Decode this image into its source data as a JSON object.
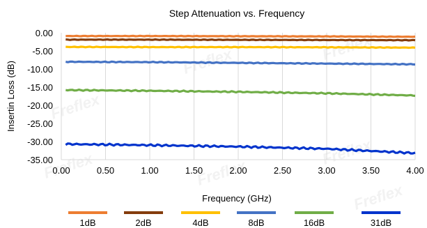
{
  "chart_data": {
    "type": "line",
    "title": "Step Attenuation vs. Frequency",
    "xlabel": "Frequency (GHz)",
    "ylabel": "Insertin Loss (dB)",
    "xlim": [
      0,
      4
    ],
    "ylim": [
      -35,
      0
    ],
    "x_ticks": [
      "0.00",
      "0.50",
      "1.00",
      "1.50",
      "2.00",
      "2.50",
      "3.00",
      "3.50",
      "4.00"
    ],
    "y_ticks": [
      "0.00",
      "-5.00",
      "-10.00",
      "-15.00",
      "-20.00",
      "-25.00",
      "-30.00",
      "-35.00"
    ],
    "grid": "vertical",
    "legend_position": "bottom",
    "watermark": "Freflex",
    "series": [
      {
        "name": "1dB",
        "color": "#ED7D31",
        "x": [
          0.05,
          1.0,
          2.0,
          3.0,
          4.0
        ],
        "y": [
          -0.9,
          -0.9,
          -0.95,
          -1.0,
          -1.1
        ]
      },
      {
        "name": "2dB",
        "color": "#843C0C",
        "x": [
          0.05,
          1.0,
          2.0,
          3.0,
          4.0
        ],
        "y": [
          -1.9,
          -1.9,
          -1.95,
          -2.0,
          -2.05
        ]
      },
      {
        "name": "4dB",
        "color": "#FFC000",
        "x": [
          0.05,
          1.0,
          2.0,
          3.0,
          4.0
        ],
        "y": [
          -3.9,
          -3.95,
          -3.95,
          -4.0,
          -4.1
        ]
      },
      {
        "name": "8dB",
        "color": "#4472C4",
        "x": [
          0.05,
          1.0,
          2.0,
          3.0,
          4.0
        ],
        "y": [
          -8.0,
          -8.1,
          -8.3,
          -8.5,
          -8.7
        ]
      },
      {
        "name": "16dB",
        "color": "#70AD47",
        "x": [
          0.05,
          1.0,
          2.0,
          3.0,
          4.0
        ],
        "y": [
          -15.8,
          -16.0,
          -16.3,
          -16.7,
          -17.3
        ]
      },
      {
        "name": "31dB",
        "color": "#0033CC",
        "x": [
          0.05,
          1.0,
          2.0,
          3.0,
          4.0
        ],
        "y": [
          -30.7,
          -31.0,
          -31.4,
          -32.0,
          -33.2
        ]
      }
    ]
  }
}
